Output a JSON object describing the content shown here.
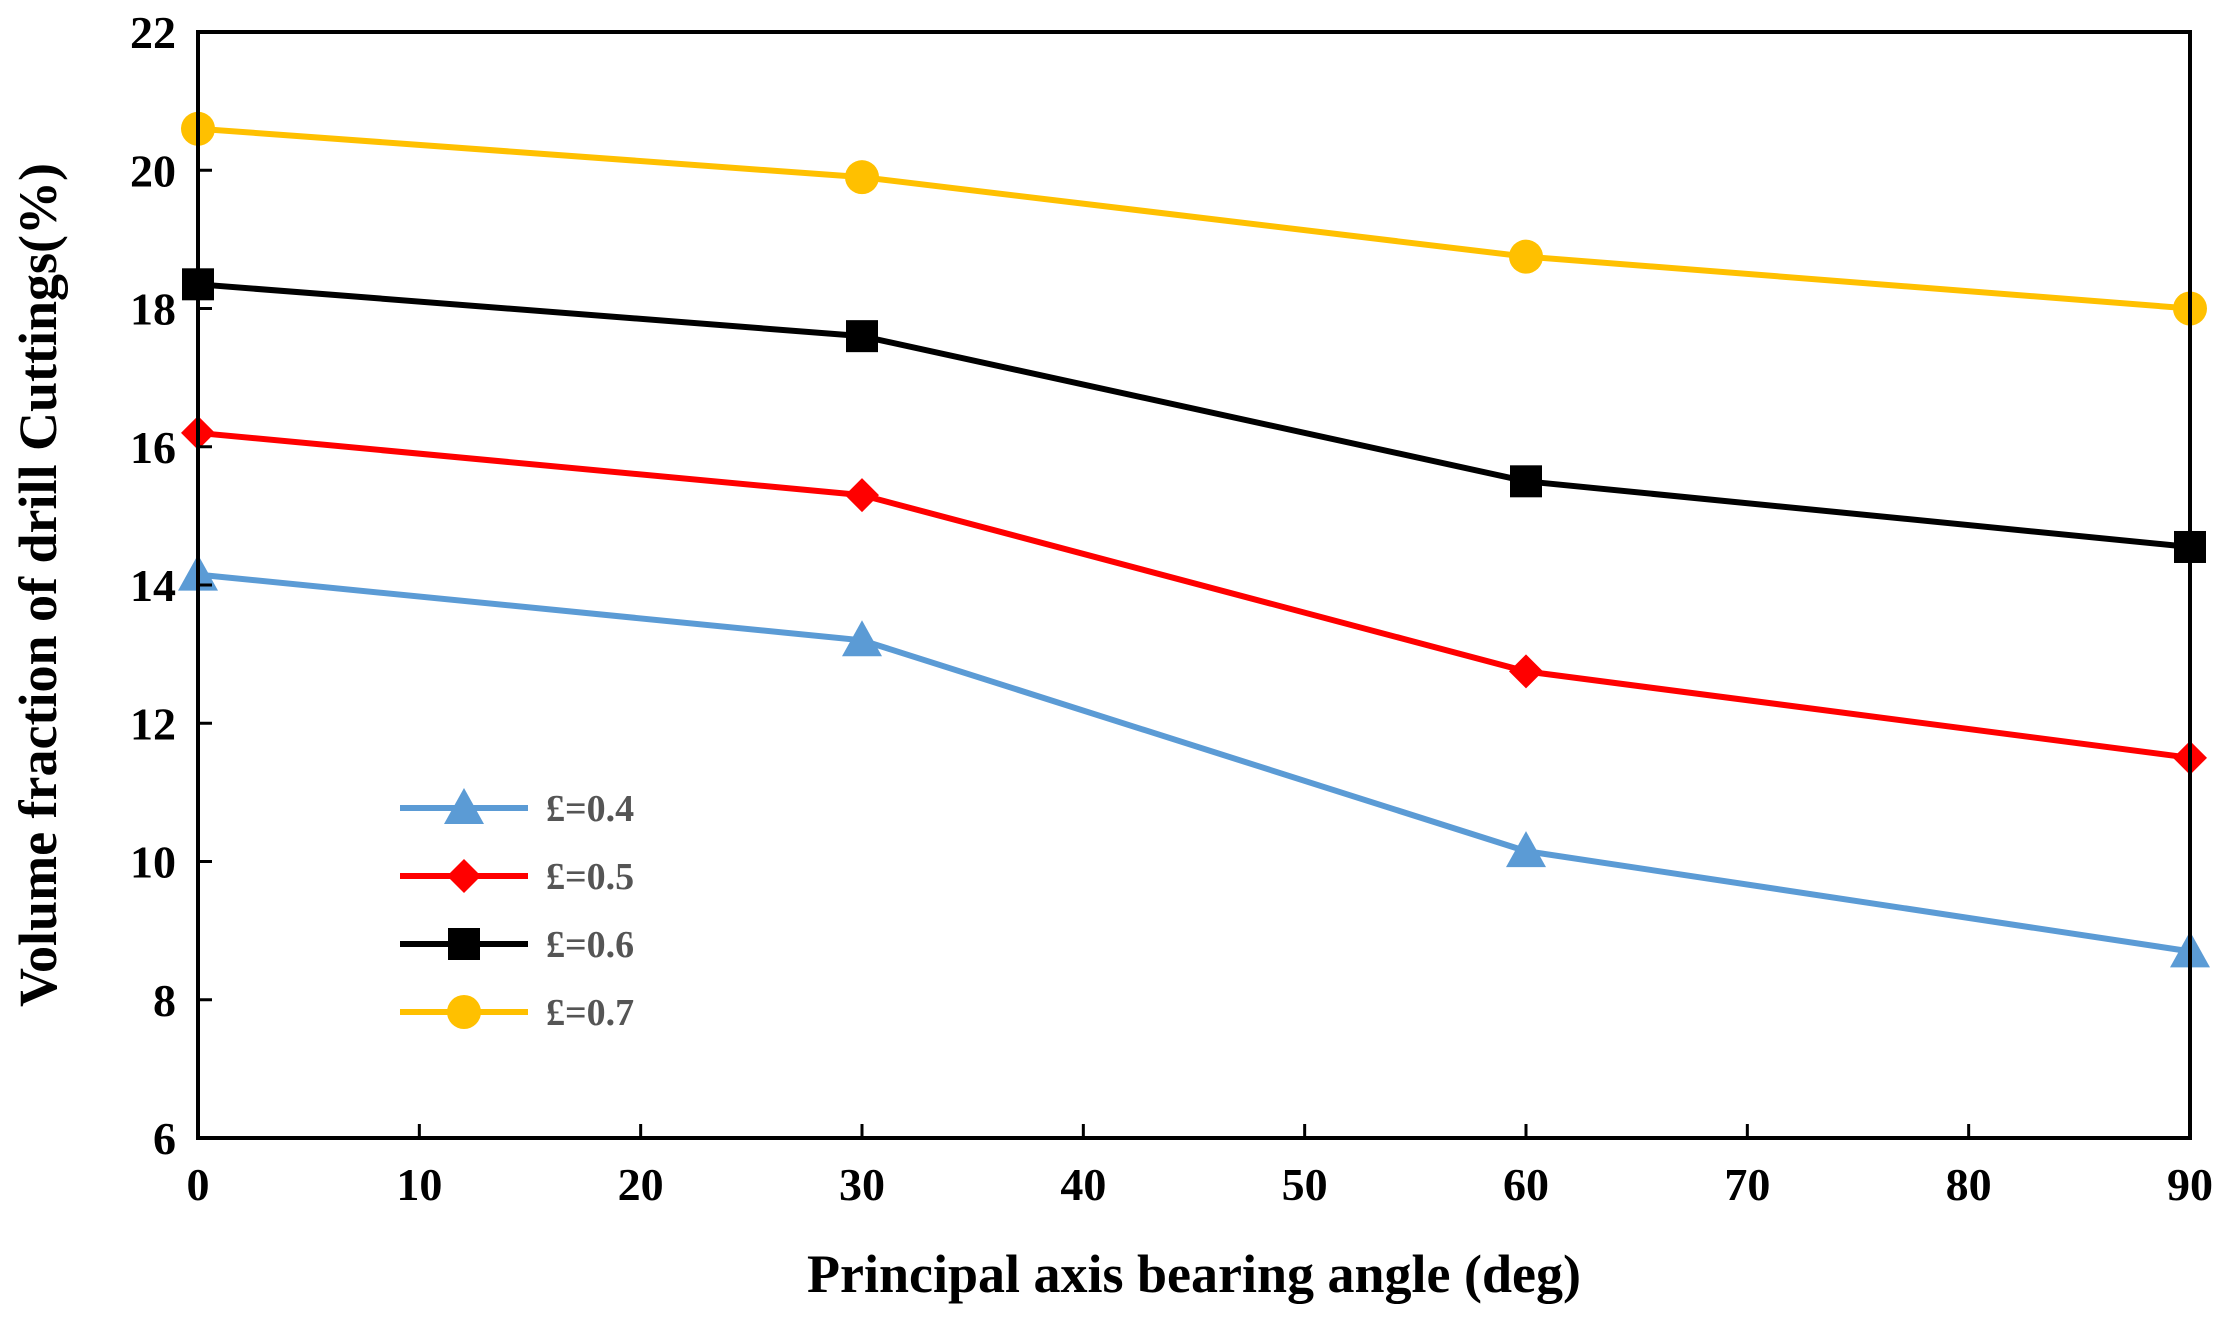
{
  "chart_data": {
    "type": "line",
    "title": "",
    "xlabel": "Principal axis bearing angle (deg)",
    "ylabel": "Volume fraction of drill Cuttings(%)",
    "xlim": [
      0,
      90
    ],
    "ylim": [
      6,
      22
    ],
    "xticks": [
      0,
      10,
      20,
      30,
      40,
      50,
      60,
      70,
      80,
      90
    ],
    "yticks": [
      6,
      8,
      10,
      12,
      14,
      16,
      18,
      20,
      22
    ],
    "grid": false,
    "legend_position": "lower-left",
    "x": [
      0,
      30,
      60,
      90
    ],
    "series": [
      {
        "name": "£=0.4",
        "values": [
          14.15,
          13.2,
          10.15,
          8.7
        ],
        "color": "#5b9bd5",
        "marker": "triangle"
      },
      {
        "name": "£=0.5",
        "values": [
          16.2,
          15.3,
          12.75,
          11.5
        ],
        "color": "#ff0000",
        "marker": "diamond"
      },
      {
        "name": "£=0.6",
        "values": [
          18.35,
          17.6,
          15.5,
          14.55
        ],
        "color": "#000000",
        "marker": "square"
      },
      {
        "name": "£=0.7",
        "values": [
          20.6,
          19.9,
          18.75,
          18.0
        ],
        "color": "#ffc000",
        "marker": "circle"
      }
    ]
  }
}
